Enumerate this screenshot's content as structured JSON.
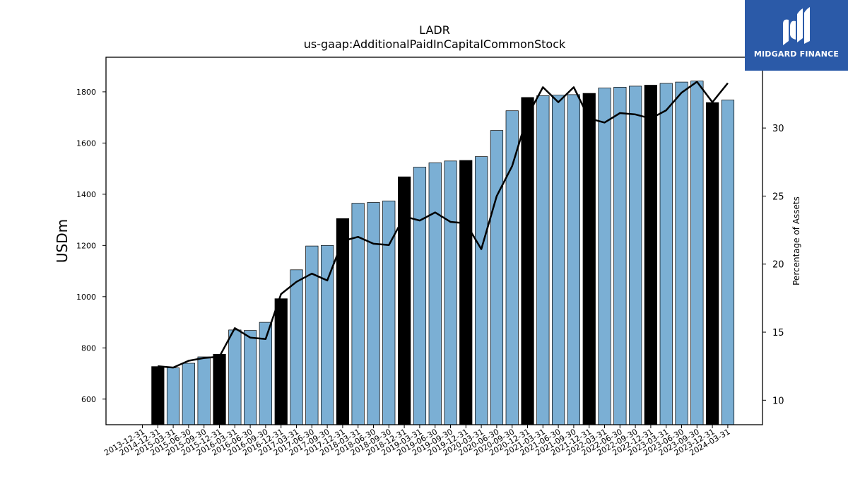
{
  "chart_data": {
    "type": "bar",
    "title": "LADR",
    "subtitle": "us-gaap:AdditionalPaidInCapitalCommonStock",
    "ylabel": "USDm",
    "y2label": "Percentage of Assets",
    "ylim": [
      500,
      1935
    ],
    "y2lim": [
      8.2,
      35.2
    ],
    "yticks": [
      600,
      800,
      1000,
      1200,
      1400,
      1600,
      1800
    ],
    "y2ticks": [
      10,
      15,
      20,
      25,
      30
    ],
    "categories": [
      "2013-12-31",
      "2014-12-31",
      "2015-03-31",
      "2015-06-30",
      "2015-09-30",
      "2015-12-31",
      "2016-03-31",
      "2016-06-30",
      "2016-09-30",
      "2016-12-31",
      "2017-03-31",
      "2017-06-30",
      "2017-09-30",
      "2017-12-31",
      "2018-03-31",
      "2018-06-30",
      "2018-09-30",
      "2018-12-31",
      "2019-03-31",
      "2019-06-30",
      "2019-09-30",
      "2019-12-31",
      "2020-03-31",
      "2020-06-30",
      "2020-09-30",
      "2020-12-31",
      "2021-03-31",
      "2021-06-30",
      "2021-09-30",
      "2021-12-31",
      "2022-03-31",
      "2022-06-30",
      "2022-09-30",
      "2022-12-31",
      "2023-03-31",
      "2023-06-30",
      "2023-09-30",
      "2023-12-31",
      "2024-03-31"
    ],
    "series": [
      {
        "values": [
          null,
          727,
          722,
          740,
          765,
          775,
          870,
          868,
          900,
          992,
          1105,
          1198,
          1200,
          1305,
          1365,
          1368,
          1374,
          1468,
          1506,
          1523,
          1530,
          1532,
          1547,
          1649,
          1726,
          1778,
          1785,
          1787,
          1789,
          1794,
          1815,
          1818,
          1822,
          1826,
          1833,
          1838,
          1842,
          1758,
          1768
        ],
        "highlight": [
          false,
          true,
          false,
          false,
          false,
          true,
          false,
          false,
          false,
          true,
          false,
          false,
          false,
          true,
          false,
          false,
          false,
          true,
          false,
          false,
          false,
          true,
          false,
          false,
          false,
          true,
          false,
          false,
          false,
          true,
          false,
          false,
          false,
          true,
          false,
          false,
          false,
          true,
          false
        ]
      },
      {
        "axis": "right",
        "values": [
          null,
          12.5,
          12.4,
          12.9,
          13.1,
          13.2,
          15.3,
          14.6,
          14.5,
          17.8,
          18.7,
          19.3,
          18.8,
          21.7,
          22.0,
          21.5,
          21.4,
          23.5,
          23.2,
          23.8,
          23.1,
          23.0,
          21.1,
          25.0,
          27.2,
          30.9,
          33.0,
          31.9,
          33.0,
          30.7,
          30.4,
          31.1,
          31.0,
          30.7,
          31.3,
          32.6,
          33.4,
          31.9,
          33.3
        ]
      }
    ],
    "colors": {
      "bar": "#7bafd4",
      "bar_highlight": "#000000",
      "line": "#000000"
    }
  },
  "logo": {
    "text": "MIDGARD FINANCE"
  }
}
